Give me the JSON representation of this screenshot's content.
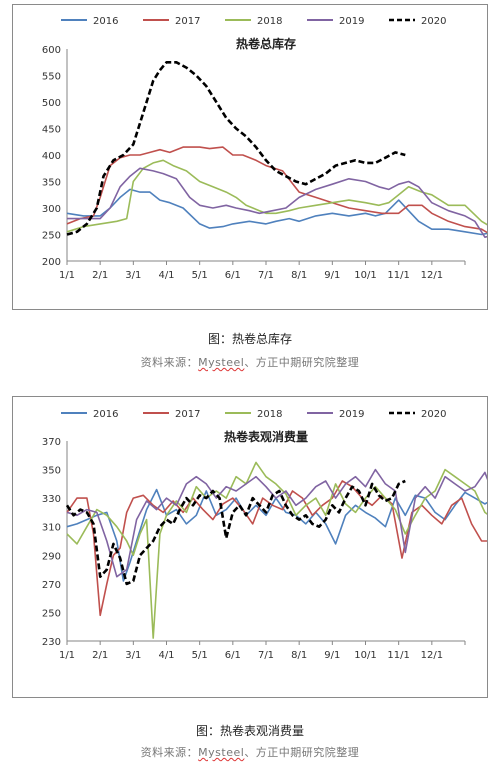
{
  "chart_data": [
    {
      "type": "line",
      "title": "热卷总库存",
      "x_ticks": [
        "1/1",
        "2/1",
        "3/1",
        "4/1",
        "5/1",
        "6/1",
        "7/1",
        "8/1",
        "9/1",
        "10/1",
        "11/1",
        "12/1"
      ],
      "ylim": [
        200,
        600
      ],
      "y_ticks": [
        200,
        250,
        300,
        350,
        400,
        450,
        500,
        550,
        600
      ],
      "legend_position": "top",
      "series": [
        {
          "name": "2016",
          "color": "#4f81bd",
          "dash": false,
          "x": [
            0,
            0.5,
            1,
            1.3,
            1.6,
            1.9,
            2.2,
            2.5,
            2.8,
            3.1,
            3.5,
            4,
            4.3,
            4.7,
            5,
            5.5,
            6,
            6.3,
            6.7,
            7,
            7.5,
            8,
            8.5,
            9,
            9.3,
            9.6,
            10,
            10.3,
            10.6,
            11,
            11.5,
            12,
            12.5,
            12.9
          ],
          "y": [
            290,
            285,
            285,
            300,
            320,
            335,
            330,
            330,
            315,
            310,
            300,
            270,
            262,
            265,
            270,
            275,
            270,
            275,
            280,
            275,
            285,
            290,
            285,
            290,
            285,
            290,
            315,
            295,
            275,
            260,
            260,
            255,
            250,
            255
          ]
        },
        {
          "name": "2017",
          "color": "#c0504d",
          "dash": false,
          "x": [
            0,
            0.4,
            0.8,
            1,
            1.3,
            1.6,
            1.9,
            2.2,
            2.5,
            2.8,
            3.1,
            3.5,
            4,
            4.3,
            4.7,
            5,
            5.3,
            5.7,
            6,
            6.5,
            7,
            7.5,
            8,
            8.5,
            9,
            9.5,
            10,
            10.3,
            10.7,
            11,
            11.5,
            12,
            12.5,
            12.9
          ],
          "y": [
            270,
            280,
            285,
            320,
            380,
            395,
            400,
            400,
            405,
            410,
            405,
            415,
            415,
            412,
            415,
            400,
            400,
            390,
            380,
            370,
            330,
            320,
            310,
            300,
            295,
            290,
            290,
            305,
            305,
            290,
            275,
            265,
            260,
            245
          ]
        },
        {
          "name": "2018",
          "color": "#9bbb59",
          "dash": false,
          "x": [
            0,
            0.5,
            1,
            1.5,
            1.8,
            2,
            2.3,
            2.6,
            2.9,
            3.2,
            3.6,
            4,
            4.4,
            4.8,
            5.1,
            5.4,
            5.8,
            6,
            6.3,
            6.7,
            7,
            7.5,
            8,
            8.5,
            9,
            9.4,
            9.7,
            10,
            10.3,
            10.7,
            11,
            11.5,
            12,
            12.5,
            12.9
          ],
          "y": [
            255,
            265,
            270,
            275,
            280,
            350,
            375,
            385,
            390,
            380,
            370,
            350,
            340,
            330,
            320,
            305,
            295,
            290,
            290,
            295,
            300,
            305,
            310,
            315,
            310,
            305,
            310,
            325,
            340,
            330,
            325,
            305,
            305,
            275,
            260
          ]
        },
        {
          "name": "2019",
          "color": "#8064a2",
          "dash": false,
          "x": [
            0,
            0.5,
            1,
            1.3,
            1.6,
            1.9,
            2.2,
            2.6,
            2.9,
            3.3,
            3.7,
            4,
            4.4,
            4.8,
            5.1,
            5.5,
            5.8,
            6.2,
            6.6,
            7,
            7.5,
            8,
            8.5,
            9,
            9.4,
            9.7,
            10,
            10.3,
            10.6,
            11,
            11.5,
            12,
            12.3,
            12.6,
            12.9
          ],
          "y": [
            280,
            280,
            280,
            300,
            340,
            360,
            375,
            370,
            365,
            355,
            320,
            305,
            300,
            305,
            300,
            295,
            290,
            295,
            300,
            320,
            335,
            345,
            355,
            350,
            340,
            335,
            345,
            350,
            340,
            310,
            295,
            285,
            275,
            245,
            250
          ]
        },
        {
          "name": "2020",
          "color": "#000000",
          "dash": true,
          "x": [
            0,
            0.3,
            0.6,
            0.9,
            1.1,
            1.4,
            1.7,
            2,
            2.3,
            2.6,
            2.8,
            3,
            3.3,
            3.6,
            3.9,
            4.2,
            4.5,
            4.8,
            5.1,
            5.4,
            5.7,
            6,
            6.3,
            6.6,
            6.9,
            7.2,
            7.5,
            7.8,
            8.1,
            8.4,
            8.7,
            9,
            9.3,
            9.6,
            9.9,
            10.2
          ],
          "y": [
            250,
            255,
            270,
            300,
            360,
            390,
            400,
            420,
            480,
            540,
            560,
            575,
            575,
            565,
            550,
            530,
            500,
            470,
            450,
            435,
            415,
            390,
            370,
            360,
            350,
            345,
            355,
            365,
            380,
            385,
            390,
            385,
            385,
            395,
            405,
            400
          ]
        }
      ]
    },
    {
      "type": "line",
      "title": "热卷表观消费量",
      "x_ticks": [
        "1/1",
        "2/1",
        "3/1",
        "4/1",
        "5/1",
        "6/1",
        "7/1",
        "8/1",
        "9/1",
        "10/1",
        "11/1",
        "12/1"
      ],
      "ylim": [
        230,
        370
      ],
      "y_ticks": [
        230,
        250,
        270,
        290,
        310,
        330,
        350,
        370
      ],
      "legend_position": "top",
      "series": [
        {
          "name": "2016",
          "color": "#4f81bd",
          "dash": false,
          "x": [
            0,
            0.3,
            0.6,
            0.9,
            1.2,
            1.5,
            1.7,
            1.9,
            2.1,
            2.4,
            2.7,
            3,
            3.3,
            3.6,
            3.9,
            4.2,
            4.5,
            4.8,
            5.1,
            5.4,
            5.7,
            6,
            6.3,
            6.6,
            6.9,
            7.2,
            7.5,
            7.8,
            8.1,
            8.4,
            8.7,
            9,
            9.3,
            9.6,
            9.9,
            10.2,
            10.5,
            10.8,
            11.1,
            11.4,
            11.7,
            12,
            12.3,
            12.6,
            12.9
          ],
          "y": [
            310,
            312,
            315,
            318,
            320,
            300,
            272,
            285,
            300,
            322,
            336,
            318,
            322,
            312,
            318,
            335,
            318,
            322,
            330,
            318,
            325,
            318,
            330,
            320,
            318,
            312,
            320,
            312,
            298,
            318,
            325,
            320,
            316,
            310,
            330,
            318,
            332,
            330,
            320,
            315,
            325,
            334,
            330,
            326,
            330
          ]
        },
        {
          "name": "2017",
          "color": "#c0504d",
          "dash": false,
          "x": [
            0,
            0.3,
            0.6,
            0.8,
            1,
            1.2,
            1.4,
            1.6,
            1.8,
            2,
            2.3,
            2.6,
            2.9,
            3.2,
            3.5,
            3.8,
            4.1,
            4.4,
            4.7,
            5,
            5.3,
            5.6,
            5.9,
            6.2,
            6.5,
            6.8,
            7.1,
            7.4,
            7.7,
            8,
            8.3,
            8.6,
            8.9,
            9.2,
            9.5,
            9.8,
            10.1,
            10.4,
            10.7,
            11,
            11.3,
            11.6,
            11.9,
            12.2,
            12.5,
            12.9
          ],
          "y": [
            320,
            330,
            330,
            305,
            248,
            270,
            290,
            295,
            320,
            330,
            332,
            325,
            320,
            328,
            320,
            330,
            322,
            315,
            326,
            330,
            322,
            312,
            330,
            325,
            322,
            335,
            330,
            318,
            325,
            330,
            342,
            338,
            330,
            325,
            332,
            326,
            288,
            320,
            325,
            318,
            312,
            325,
            330,
            312,
            300,
            300
          ]
        },
        {
          "name": "2018",
          "color": "#9bbb59",
          "dash": false,
          "x": [
            0,
            0.3,
            0.6,
            0.9,
            1.2,
            1.5,
            1.8,
            2,
            2.2,
            2.4,
            2.6,
            2.8,
            3,
            3.3,
            3.6,
            3.9,
            4.2,
            4.5,
            4.8,
            5.1,
            5.4,
            5.7,
            6,
            6.3,
            6.6,
            6.9,
            7.2,
            7.5,
            7.8,
            8.1,
            8.4,
            8.7,
            9,
            9.3,
            9.6,
            9.9,
            10.2,
            10.5,
            10.8,
            11.1,
            11.4,
            11.7,
            12,
            12.3,
            12.6,
            12.9
          ],
          "y": [
            305,
            298,
            310,
            322,
            318,
            310,
            300,
            290,
            305,
            315,
            232,
            305,
            318,
            328,
            320,
            338,
            330,
            335,
            330,
            345,
            340,
            355,
            345,
            340,
            333,
            318,
            325,
            330,
            318,
            340,
            326,
            320,
            330,
            338,
            330,
            322,
            305,
            318,
            330,
            335,
            350,
            345,
            340,
            335,
            320,
            315
          ]
        },
        {
          "name": "2019",
          "color": "#8064a2",
          "dash": false,
          "x": [
            0,
            0.3,
            0.6,
            0.9,
            1.2,
            1.5,
            1.8,
            2.1,
            2.4,
            2.7,
            3,
            3.3,
            3.6,
            3.9,
            4.2,
            4.5,
            4.8,
            5.1,
            5.4,
            5.7,
            6,
            6.3,
            6.6,
            6.9,
            7.2,
            7.5,
            7.8,
            8.1,
            8.4,
            8.7,
            9,
            9.3,
            9.6,
            9.9,
            10.2,
            10.5,
            10.8,
            11.1,
            11.4,
            11.7,
            12,
            12.3,
            12.6,
            12.9
          ],
          "y": [
            320,
            318,
            322,
            320,
            300,
            275,
            280,
            315,
            328,
            322,
            330,
            325,
            340,
            345,
            340,
            330,
            338,
            335,
            340,
            345,
            338,
            330,
            335,
            325,
            330,
            338,
            342,
            330,
            340,
            345,
            338,
            350,
            340,
            335,
            292,
            330,
            338,
            330,
            345,
            340,
            335,
            338,
            348,
            330
          ]
        },
        {
          "name": "2020",
          "color": "#000000",
          "dash": true,
          "x": [
            0,
            0.2,
            0.4,
            0.6,
            0.8,
            1,
            1.2,
            1.4,
            1.6,
            1.8,
            2,
            2.2,
            2.4,
            2.6,
            2.8,
            3,
            3.2,
            3.4,
            3.6,
            3.8,
            4,
            4.2,
            4.4,
            4.6,
            4.8,
            5,
            5.2,
            5.4,
            5.6,
            5.8,
            6,
            6.2,
            6.4,
            6.6,
            6.8,
            7,
            7.2,
            7.4,
            7.6,
            7.8,
            8,
            8.2,
            8.4,
            8.6,
            8.8,
            9,
            9.2,
            9.4,
            9.6,
            9.8,
            10,
            10.2
          ],
          "y": [
            325,
            318,
            322,
            320,
            312,
            275,
            280,
            298,
            288,
            270,
            272,
            290,
            295,
            300,
            310,
            315,
            312,
            322,
            330,
            325,
            332,
            330,
            335,
            330,
            302,
            320,
            325,
            318,
            330,
            325,
            320,
            332,
            335,
            325,
            318,
            315,
            318,
            312,
            310,
            315,
            325,
            320,
            330,
            338,
            335,
            325,
            340,
            332,
            328,
            330,
            340,
            342
          ]
        }
      ]
    }
  ],
  "captions": {
    "chart1_caption": "图：热卷总库存",
    "chart2_caption": "图：热卷表观消费量",
    "source_prefix": "资料来源：",
    "source_brand": "Mysteel",
    "source_suffix": "、方正中期研究院整理"
  }
}
